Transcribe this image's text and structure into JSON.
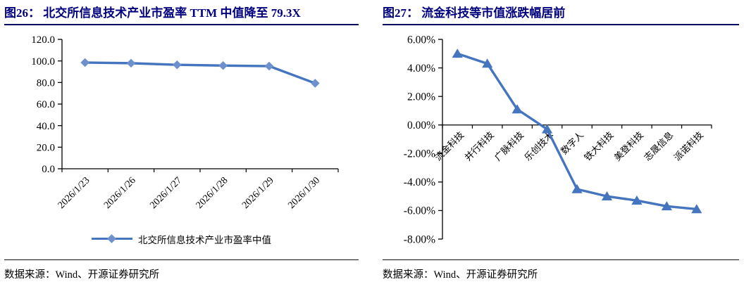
{
  "page": {
    "background": "#ffffff"
  },
  "figures": [
    {
      "title": "图26： 北交所信息技术产业市盈率 TTM 中值降至 79.3X",
      "legend": "北交所信息技术产业市盈率中值",
      "source": "数据来源：Wind、开源证券研究所"
    },
    {
      "title": "图27： 流金科技等市值涨跌幅居前",
      "source": "数据来源：Wind、开源证券研究所"
    }
  ],
  "colors": {
    "title_navy": "#00007F",
    "title_rule": "#000060",
    "axis_black": "#000000",
    "line_blue": "#4575BE",
    "diamond_marker_blue": "#6E91CE"
  },
  "chart_data": [
    {
      "type": "line",
      "title": "北交所信息技术产业市盈率TTM中值降至79.3X",
      "categories": [
        "2026/1/23",
        "2026/1/26",
        "2026/1/27",
        "2026/1/28",
        "2026/1/29",
        "2026/1/30"
      ],
      "series": [
        {
          "name": "北交所信息技术产业市盈率中值",
          "values": [
            98.5,
            97.9,
            96.4,
            95.7,
            95.2,
            79.3
          ]
        }
      ],
      "xlabel": "",
      "ylabel": "",
      "ylim": [
        0,
        120
      ],
      "ytick_step": 20,
      "ytick_labels": [
        "0.0",
        "20.0",
        "40.0",
        "60.0",
        "80.0",
        "100.0",
        "120.0"
      ],
      "marker": "diamond",
      "grid": false,
      "legend_position": "bottom",
      "line_color": "#4575BE",
      "marker_color": "#6E91CE"
    },
    {
      "type": "line",
      "title": "流金科技等市值涨跌幅居前",
      "categories": [
        "流金科技",
        "并行科技",
        "广脉科技",
        "乐创技术",
        "数字人",
        "铁大科技",
        "美登科技",
        "志晟信息",
        "派诺科技"
      ],
      "series": [
        {
          "name": "市值涨跌幅",
          "values": [
            5.0,
            4.3,
            1.1,
            -0.3,
            -4.5,
            -5.0,
            -5.3,
            -5.7,
            -5.9
          ]
        }
      ],
      "value_unit": "%",
      "xlabel": "",
      "ylabel": "",
      "ylim": [
        -8,
        6
      ],
      "ytick_step": 2,
      "ytick_labels": [
        "-8.00%",
        "-6.00%",
        "-4.00%",
        "-2.00%",
        "0.00%",
        "2.00%",
        "4.00%",
        "6.00%"
      ],
      "marker": "triangle",
      "grid": false,
      "legend_position": "none",
      "line_color": "#4575BE",
      "marker_color": "#4575BE"
    }
  ]
}
